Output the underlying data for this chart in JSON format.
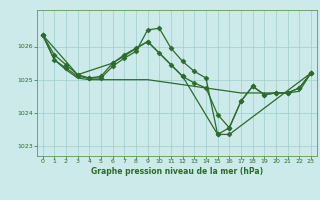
{
  "background_color": "#cdeaea",
  "grid_color": "#9ecece",
  "line_color": "#2d6a2d",
  "text_color": "#2d6a2d",
  "xlabel": "Graphe pression niveau de la mer (hPa)",
  "xlim": [
    -0.5,
    23.5
  ],
  "ylim": [
    1022.7,
    1027.1
  ],
  "yticks": [
    1023,
    1024,
    1025,
    1026
  ],
  "xticks": [
    0,
    1,
    2,
    3,
    4,
    5,
    6,
    7,
    8,
    9,
    10,
    11,
    12,
    13,
    14,
    15,
    16,
    17,
    18,
    19,
    20,
    21,
    22,
    23
  ],
  "series": [
    {
      "x": [
        0,
        1,
        2,
        3,
        4,
        5,
        6,
        7,
        8,
        9,
        10,
        11,
        12,
        13,
        14,
        15,
        16,
        17,
        18,
        19,
        20,
        21,
        22,
        23
      ],
      "y": [
        1026.35,
        1025.75,
        1025.45,
        1025.15,
        1025.05,
        1025.1,
        1025.5,
        1025.75,
        1025.95,
        1026.15,
        1025.8,
        1025.45,
        1025.1,
        1024.9,
        1024.75,
        1023.95,
        1023.55,
        1024.35,
        1024.8,
        1024.55,
        1024.6,
        1024.6,
        1024.75,
        1025.2
      ],
      "marker": "D",
      "markersize": 2.5,
      "lw": 0.9
    },
    {
      "x": [
        0,
        1,
        2,
        3,
        4,
        5,
        6,
        7,
        8,
        9,
        10,
        11,
        12,
        13,
        14,
        15,
        16,
        23
      ],
      "y": [
        1026.35,
        1025.6,
        1025.35,
        1025.1,
        1025.05,
        1025.05,
        1025.4,
        1025.65,
        1025.85,
        1026.5,
        1026.55,
        1025.95,
        1025.55,
        1025.25,
        1025.05,
        1023.35,
        1023.35,
        1025.2
      ],
      "marker": "D",
      "markersize": 2.5,
      "lw": 0.9
    },
    {
      "x": [
        0,
        1,
        2,
        3,
        4,
        5,
        6,
        7,
        8,
        9,
        10,
        11,
        12,
        13,
        14,
        15,
        16,
        17,
        18,
        19,
        20,
        21,
        22,
        23
      ],
      "y": [
        1026.35,
        1025.6,
        1025.3,
        1025.05,
        1025.0,
        1025.0,
        1025.0,
        1025.0,
        1025.0,
        1025.0,
        1024.95,
        1024.9,
        1024.85,
        1024.8,
        1024.75,
        1024.7,
        1024.65,
        1024.6,
        1024.6,
        1024.6,
        1024.6,
        1024.6,
        1024.65,
        1025.2
      ],
      "marker": null,
      "markersize": 0,
      "lw": 0.9
    },
    {
      "x": [
        0,
        3,
        6,
        9,
        12,
        15,
        16,
        17,
        18,
        19,
        20,
        21,
        22,
        23
      ],
      "y": [
        1026.35,
        1025.15,
        1025.5,
        1026.15,
        1025.1,
        1023.35,
        1023.55,
        1024.35,
        1024.8,
        1024.55,
        1024.6,
        1024.6,
        1024.75,
        1025.2
      ],
      "marker": "D",
      "markersize": 2.5,
      "lw": 0.9
    }
  ]
}
